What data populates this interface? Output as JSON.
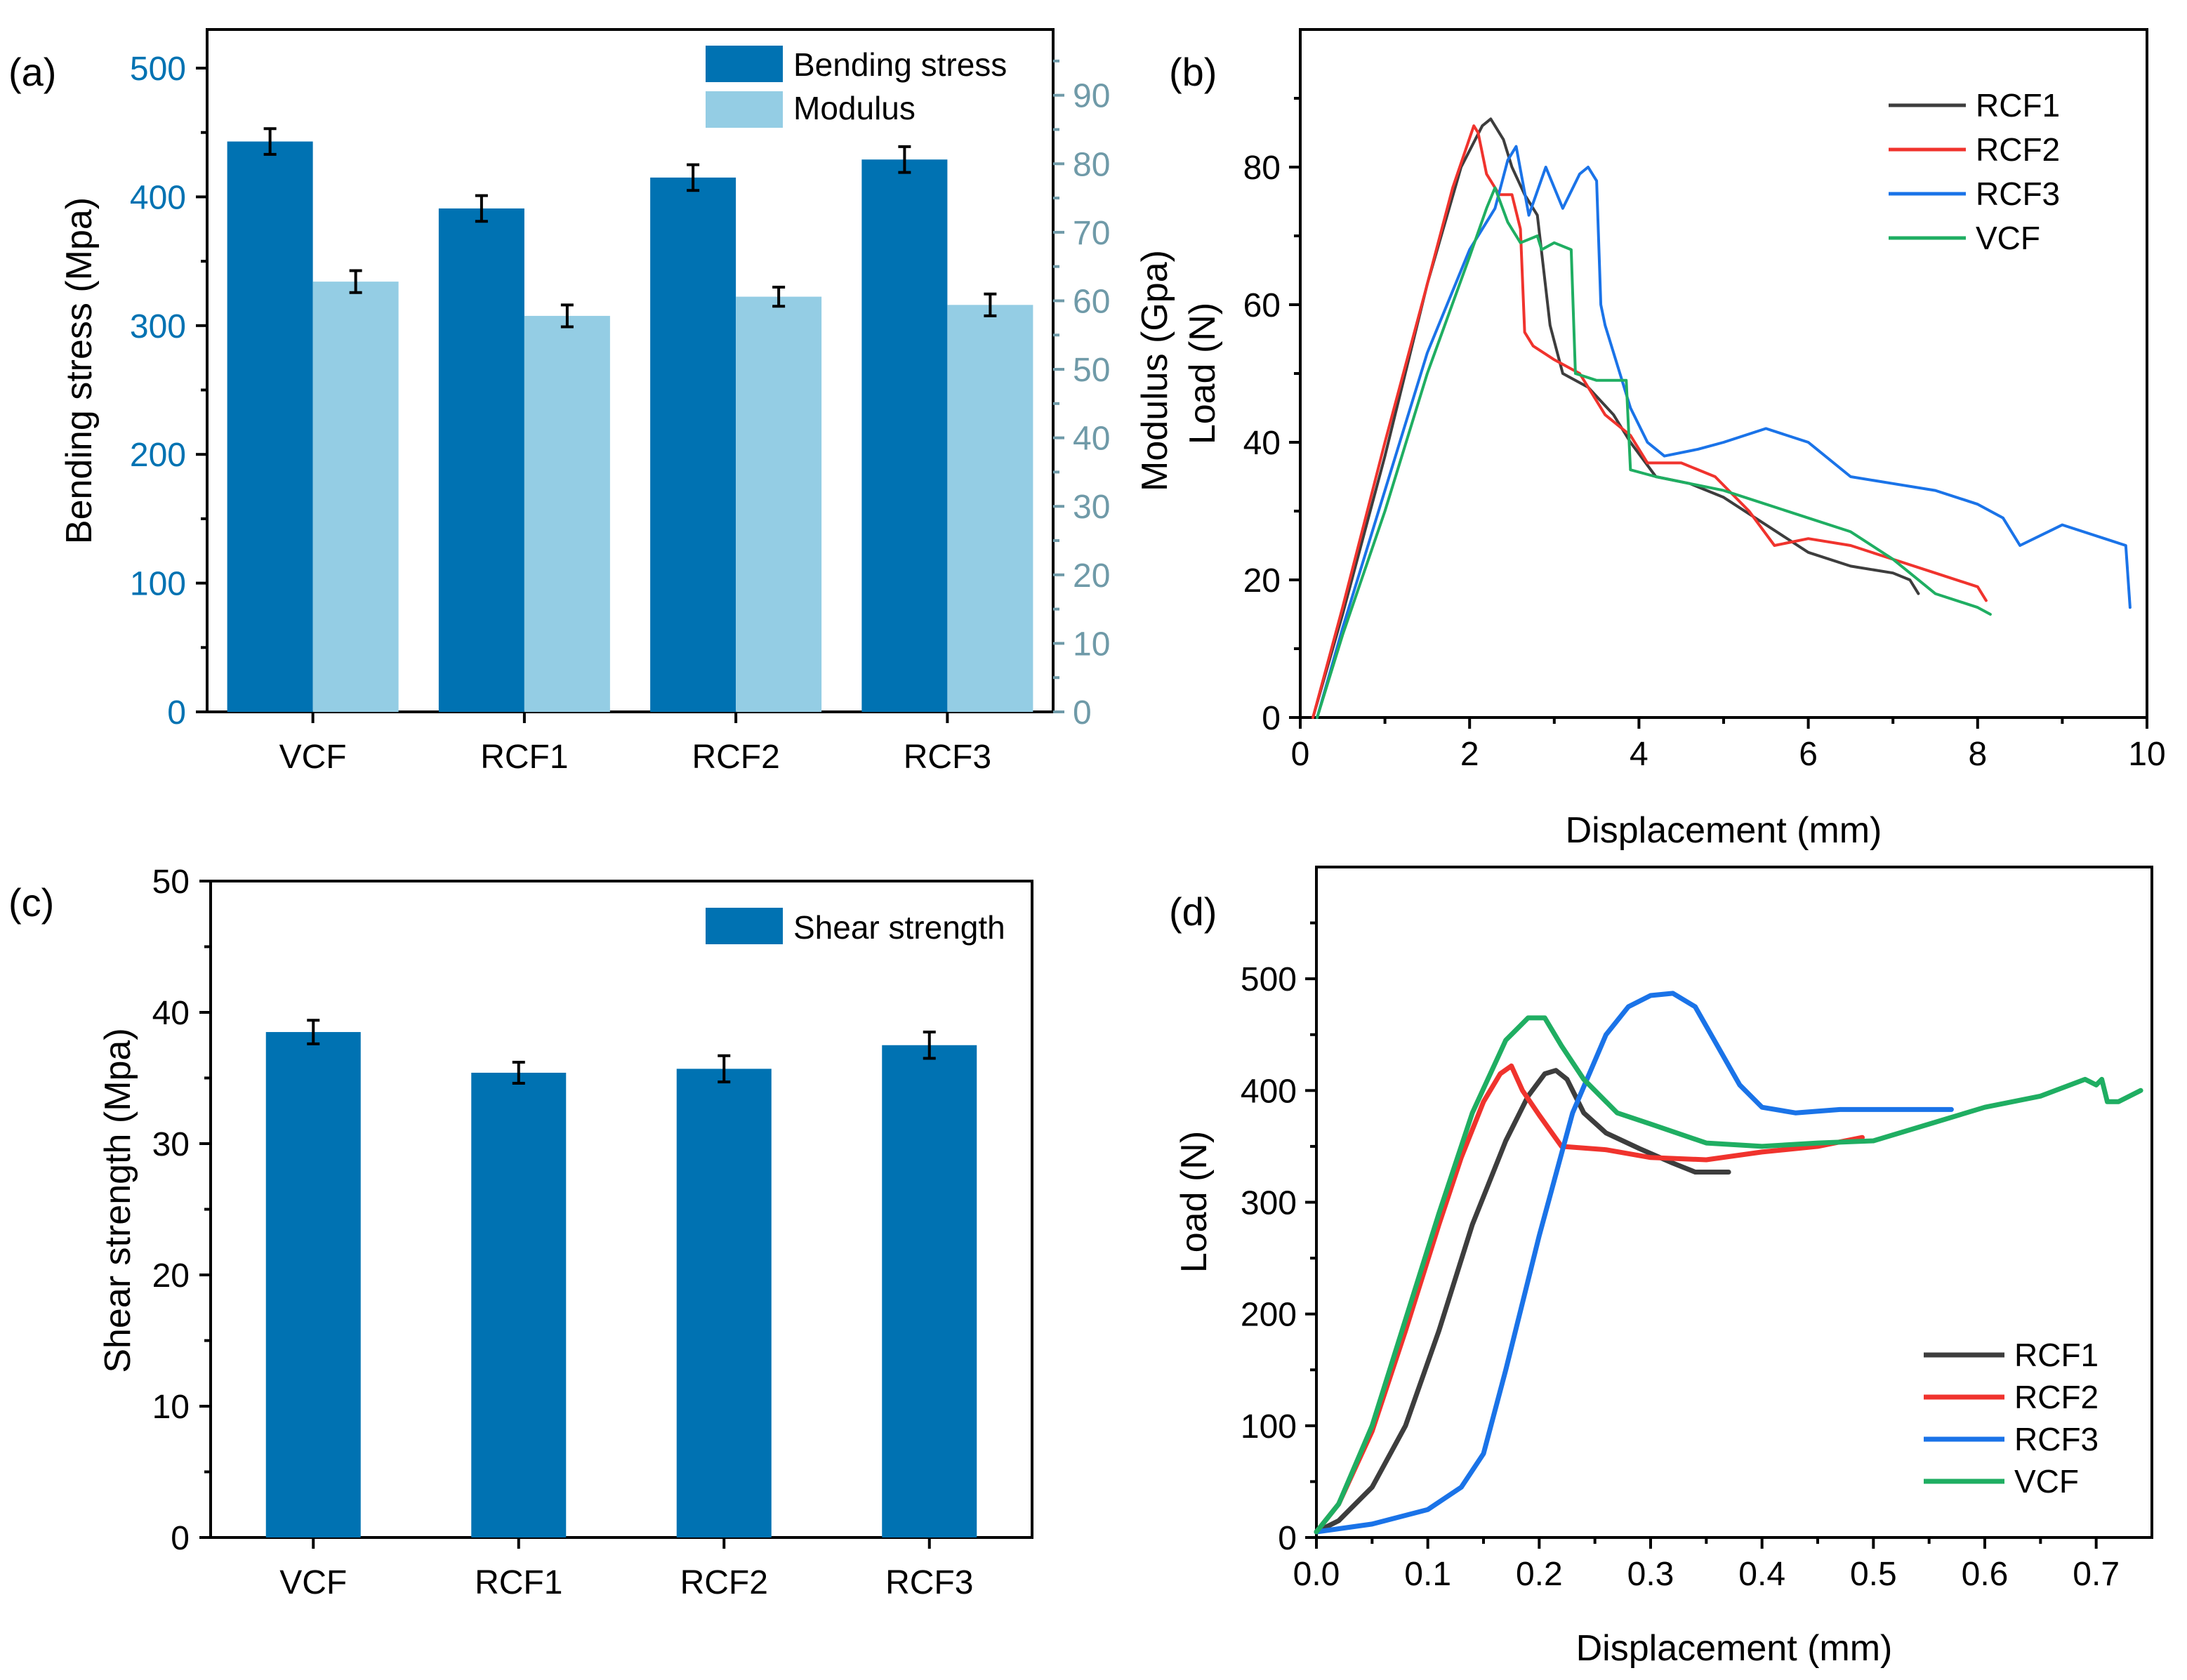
{
  "colors": {
    "dark_blue": "#0072b2",
    "light_blue": "#94cde4",
    "modulus_axis": "#6f9aa8",
    "rcf1": "#3d3d3d",
    "rcf2": "#f0332d",
    "rcf3": "#1a73e8",
    "vcf": "#1fae62"
  },
  "chart_data": [
    {
      "panel": "(a)",
      "type": "bar",
      "categories": [
        "VCF",
        "RCF1",
        "RCF2",
        "RCF3"
      ],
      "series": [
        {
          "name": "Bending stress",
          "axis": "left",
          "values": [
            443,
            391,
            415,
            429
          ],
          "errors": [
            10,
            10,
            10,
            10
          ]
        },
        {
          "name": "Modulus",
          "axis": "right",
          "values": [
            62.8,
            57.8,
            60.6,
            59.4
          ],
          "errors": [
            1.6,
            1.6,
            1.4,
            1.6
          ]
        }
      ],
      "ylabel": "Bending stress (Mpa)",
      "ylim": [
        0,
        530
      ],
      "yticks": [
        0,
        100,
        200,
        300,
        400,
        500
      ],
      "y2label": "Modulus (Gpa)",
      "y2lim": [
        0,
        99.6
      ],
      "y2ticks": [
        0,
        10,
        20,
        30,
        40,
        50,
        60,
        70,
        80,
        90
      ],
      "legend_position": "top-right"
    },
    {
      "panel": "(b)",
      "type": "line",
      "xlabel": "Displacement (mm)",
      "ylabel": "Load (N)",
      "xlim": [
        0,
        10
      ],
      "xticks": [
        0,
        2,
        4,
        6,
        8,
        10
      ],
      "ylim": [
        0,
        100
      ],
      "yticks": [
        0,
        20,
        40,
        60,
        80
      ],
      "legend_position": "top-right",
      "series": [
        {
          "name": "RCF1",
          "color": "#3d3d3d",
          "x": [
            0.15,
            0.5,
            1.0,
            1.5,
            1.9,
            2.15,
            2.25,
            2.4,
            2.5,
            2.65,
            2.8,
            2.95,
            3.1,
            3.4,
            3.7,
            3.9,
            4.2,
            4.6,
            5.0,
            5.5,
            6.0,
            6.5,
            7.0,
            7.2,
            7.3
          ],
          "y": [
            0,
            15,
            38,
            63,
            80,
            86,
            87,
            84,
            80,
            76,
            73,
            57,
            50,
            48,
            44,
            40,
            35,
            34,
            32,
            28,
            24,
            22,
            21,
            20,
            18
          ]
        },
        {
          "name": "RCF2",
          "color": "#f0332d",
          "x": [
            0.15,
            0.5,
            1.0,
            1.5,
            1.8,
            2.05,
            2.1,
            2.2,
            2.35,
            2.5,
            2.6,
            2.65,
            2.75,
            3.0,
            3.3,
            3.6,
            3.9,
            4.1,
            4.5,
            4.9,
            5.3,
            5.6,
            6.0,
            6.5,
            7.0,
            7.5,
            8.0,
            8.1
          ],
          "y": [
            0,
            16,
            40,
            63,
            77,
            86,
            85,
            79,
            76,
            76,
            71,
            56,
            54,
            52,
            50,
            44,
            41,
            37,
            37,
            35,
            30,
            25,
            26,
            25,
            23,
            21,
            19,
            17
          ]
        },
        {
          "name": "RCF3",
          "color": "#1a73e8",
          "x": [
            0.2,
            0.5,
            1.0,
            1.5,
            2.0,
            2.3,
            2.45,
            2.55,
            2.7,
            2.9,
            3.1,
            3.3,
            3.4,
            3.5,
            3.55,
            3.6,
            3.75,
            3.9,
            4.1,
            4.3,
            4.7,
            5.0,
            5.5,
            6.0,
            6.5,
            7.0,
            7.5,
            8.0,
            8.3,
            8.5,
            9.0,
            9.5,
            9.75,
            9.8
          ],
          "y": [
            0,
            13,
            33,
            53,
            68,
            74,
            81,
            83,
            73,
            80,
            74,
            79,
            80,
            78,
            60,
            57,
            51,
            45,
            40,
            38,
            39,
            40,
            42,
            40,
            35,
            34,
            33,
            31,
            29,
            25,
            28,
            26,
            25,
            16
          ]
        },
        {
          "name": "VCF",
          "color": "#1fae62",
          "x": [
            0.2,
            0.5,
            1.0,
            1.5,
            2.0,
            2.2,
            2.3,
            2.45,
            2.6,
            2.8,
            2.85,
            3.0,
            3.2,
            3.25,
            3.5,
            3.85,
            3.9,
            4.2,
            4.6,
            5.0,
            5.5,
            6.0,
            6.5,
            7.0,
            7.5,
            8.0,
            8.15
          ],
          "y": [
            0,
            12,
            30,
            50,
            67,
            74,
            77,
            72,
            69,
            70,
            68,
            69,
            68,
            50,
            49,
            49,
            36,
            35,
            34,
            33,
            31,
            29,
            27,
            23,
            18,
            16,
            15
          ]
        }
      ]
    },
    {
      "panel": "(c)",
      "type": "bar",
      "categories": [
        "VCF",
        "RCF1",
        "RCF2",
        "RCF3"
      ],
      "series": [
        {
          "name": "Shear strength",
          "values": [
            38.5,
            35.4,
            35.7,
            37.5
          ],
          "errors": [
            0.9,
            0.8,
            1.0,
            1.0
          ]
        }
      ],
      "ylabel": "Shear strength (Mpa)",
      "ylim": [
        0,
        50
      ],
      "yticks": [
        0,
        10,
        20,
        30,
        40,
        50
      ],
      "legend_position": "top-right"
    },
    {
      "panel": "(d)",
      "type": "line",
      "xlabel": "Displacement (mm)",
      "ylabel": "Load (N)",
      "xlim": [
        0,
        0.75
      ],
      "xticks": [
        0.0,
        0.1,
        0.2,
        0.3,
        0.4,
        0.5,
        0.6,
        0.7
      ],
      "ylim": [
        0,
        600
      ],
      "yticks": [
        0,
        100,
        200,
        300,
        400,
        500
      ],
      "legend_position": "bottom-right",
      "series": [
        {
          "name": "RCF1",
          "color": "#3d3d3d",
          "x": [
            0.0,
            0.02,
            0.05,
            0.08,
            0.11,
            0.14,
            0.17,
            0.19,
            0.205,
            0.215,
            0.225,
            0.24,
            0.26,
            0.29,
            0.32,
            0.34,
            0.37
          ],
          "y": [
            5,
            15,
            45,
            100,
            185,
            280,
            355,
            395,
            415,
            418,
            410,
            380,
            362,
            348,
            335,
            327,
            327
          ]
        },
        {
          "name": "RCF2",
          "color": "#f0332d",
          "x": [
            0.0,
            0.02,
            0.05,
            0.08,
            0.11,
            0.13,
            0.15,
            0.165,
            0.175,
            0.185,
            0.2,
            0.22,
            0.26,
            0.3,
            0.35,
            0.4,
            0.45,
            0.49
          ],
          "y": [
            5,
            30,
            95,
            185,
            280,
            340,
            390,
            415,
            422,
            400,
            378,
            350,
            347,
            340,
            338,
            345,
            350,
            358
          ]
        },
        {
          "name": "RCF3",
          "color": "#1a73e8",
          "x": [
            0.0,
            0.05,
            0.1,
            0.13,
            0.15,
            0.17,
            0.2,
            0.23,
            0.26,
            0.28,
            0.3,
            0.32,
            0.34,
            0.36,
            0.38,
            0.4,
            0.43,
            0.47,
            0.52,
            0.57
          ],
          "y": [
            5,
            12,
            25,
            45,
            75,
            150,
            270,
            380,
            450,
            475,
            485,
            487,
            475,
            440,
            405,
            385,
            380,
            383,
            383,
            383
          ]
        },
        {
          "name": "VCF",
          "color": "#1fae62",
          "x": [
            0.0,
            0.02,
            0.05,
            0.08,
            0.11,
            0.14,
            0.17,
            0.19,
            0.205,
            0.22,
            0.24,
            0.27,
            0.3,
            0.35,
            0.4,
            0.45,
            0.5,
            0.55,
            0.6,
            0.65,
            0.69,
            0.7,
            0.705,
            0.71,
            0.72,
            0.74
          ],
          "y": [
            5,
            30,
            100,
            195,
            290,
            380,
            445,
            465,
            465,
            440,
            410,
            380,
            370,
            353,
            350,
            353,
            355,
            370,
            385,
            395,
            410,
            405,
            410,
            390,
            390,
            400
          ]
        }
      ]
    }
  ]
}
